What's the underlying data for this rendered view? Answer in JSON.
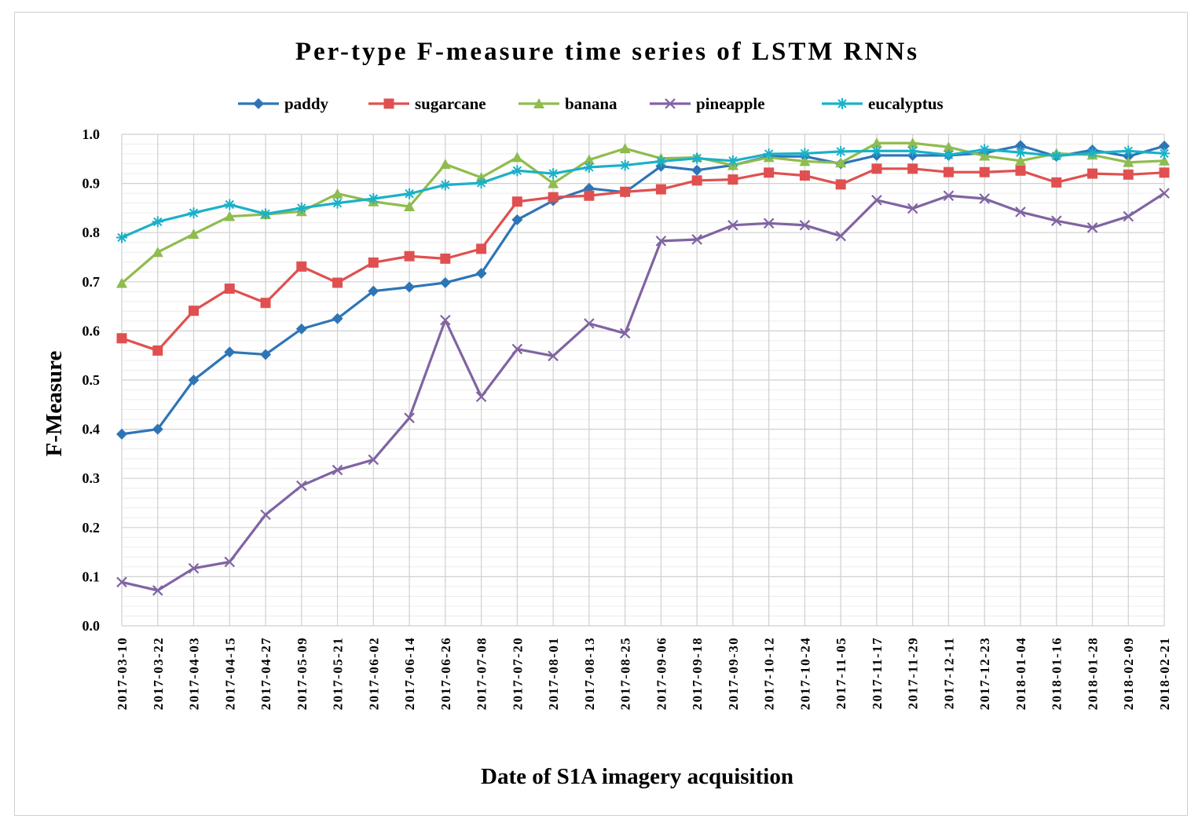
{
  "chart_data": {
    "type": "line",
    "title": "Per-type F-measure time series of LSTM RNNs",
    "xlabel": "Date of S1A imagery acquisition",
    "ylabel": "F-Measure",
    "ylim": [
      0,
      1
    ],
    "yticks": [
      "0.0",
      "0.1",
      "0.2",
      "0.3",
      "0.4",
      "0.5",
      "0.6",
      "0.7",
      "0.8",
      "0.9",
      "1.0"
    ],
    "grid": true,
    "legend_position": "top",
    "categories": [
      "2017-03-10",
      "2017-03-22",
      "2017-04-03",
      "2017-04-15",
      "2017-04-27",
      "2017-05-09",
      "2017-05-21",
      "2017-06-02",
      "2017-06-14",
      "2017-06-26",
      "2017-07-08",
      "2017-07-20",
      "2017-08-01",
      "2017-08-13",
      "2017-08-25",
      "2017-09-06",
      "2017-09-18",
      "2017-09-30",
      "2017-10-12",
      "2017-10-24",
      "2017-11-05",
      "2017-11-17",
      "2017-11-29",
      "2017-12-11",
      "2017-12-23",
      "2018-01-04",
      "2018-01-16",
      "2018-01-28",
      "2018-02-09",
      "2018-02-21"
    ],
    "series": [
      {
        "name": "paddy",
        "color": "#2e75b6",
        "marker": "diamond",
        "values": [
          0.39,
          0.4,
          0.5,
          0.557,
          0.552,
          0.604,
          0.625,
          0.681,
          0.689,
          0.698,
          0.717,
          0.826,
          0.865,
          0.89,
          0.882,
          0.935,
          0.927,
          0.937,
          0.955,
          0.955,
          0.94,
          0.957,
          0.957,
          0.957,
          0.962,
          0.977,
          0.955,
          0.968,
          0.955,
          0.976
        ]
      },
      {
        "name": "sugarcane",
        "color": "#e05050",
        "marker": "square",
        "values": [
          0.585,
          0.56,
          0.641,
          0.686,
          0.657,
          0.731,
          0.698,
          0.739,
          0.752,
          0.747,
          0.767,
          0.863,
          0.872,
          0.875,
          0.883,
          0.888,
          0.906,
          0.908,
          0.922,
          0.916,
          0.898,
          0.93,
          0.93,
          0.923,
          0.923,
          0.926,
          0.902,
          0.92,
          0.918,
          0.922
        ]
      },
      {
        "name": "banana",
        "color": "#8fbc4e",
        "marker": "triangle",
        "values": [
          0.697,
          0.76,
          0.797,
          0.833,
          0.837,
          0.843,
          0.879,
          0.863,
          0.853,
          0.939,
          0.912,
          0.953,
          0.9,
          0.948,
          0.971,
          0.951,
          0.953,
          0.937,
          0.953,
          0.945,
          0.942,
          0.982,
          0.982,
          0.974,
          0.956,
          0.946,
          0.961,
          0.958,
          0.943,
          0.946
        ]
      },
      {
        "name": "pineapple",
        "color": "#8064a2",
        "marker": "x",
        "values": [
          0.089,
          0.072,
          0.117,
          0.13,
          0.226,
          0.285,
          0.317,
          0.338,
          0.423,
          0.622,
          0.466,
          0.563,
          0.549,
          0.615,
          0.595,
          0.783,
          0.786,
          0.815,
          0.819,
          0.815,
          0.793,
          0.866,
          0.849,
          0.875,
          0.869,
          0.842,
          0.824,
          0.81,
          0.833,
          0.88
        ]
      },
      {
        "name": "eucalyptus",
        "color": "#1ab1c8",
        "marker": "star",
        "values": [
          0.79,
          0.822,
          0.84,
          0.857,
          0.838,
          0.85,
          0.86,
          0.869,
          0.879,
          0.897,
          0.901,
          0.926,
          0.92,
          0.933,
          0.937,
          0.945,
          0.951,
          0.946,
          0.96,
          0.961,
          0.965,
          0.966,
          0.966,
          0.958,
          0.969,
          0.963,
          0.956,
          0.962,
          0.966,
          0.961
        ]
      }
    ]
  }
}
